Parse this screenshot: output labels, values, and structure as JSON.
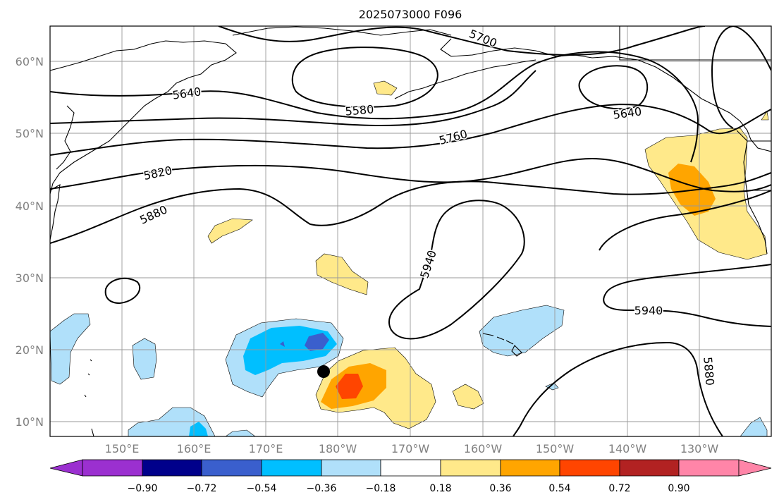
{
  "title": "2025073000 F096",
  "lat_ticks": [
    "60°N",
    "50°N",
    "40°N",
    "30°N",
    "20°N",
    "10°N"
  ],
  "lon_ticks": [
    "150°E",
    "160°E",
    "170°E",
    "180°W",
    "170°W",
    "160°W",
    "150°W",
    "140°W",
    "130°W"
  ],
  "contour_labels": [
    "5700",
    "5640",
    "5580",
    "5640",
    "5760",
    "5820",
    "5880",
    "5940",
    "5940",
    "5880"
  ],
  "colorbar": {
    "labels": [
      "−0.90",
      "−0.72",
      "−0.54",
      "−0.36",
      "−0.18",
      "0.18",
      "0.36",
      "0.54",
      "0.72",
      "0.90"
    ],
    "colors": [
      "#9b30d0",
      "#00008b",
      "#3a5fcd",
      "#00bfff",
      "#b0e0fa",
      "#ffffff",
      "#ffe98a",
      "#ffa500",
      "#ff4500",
      "#b22222",
      "#ff85a8"
    ]
  },
  "marker": "storm-center-dot"
}
